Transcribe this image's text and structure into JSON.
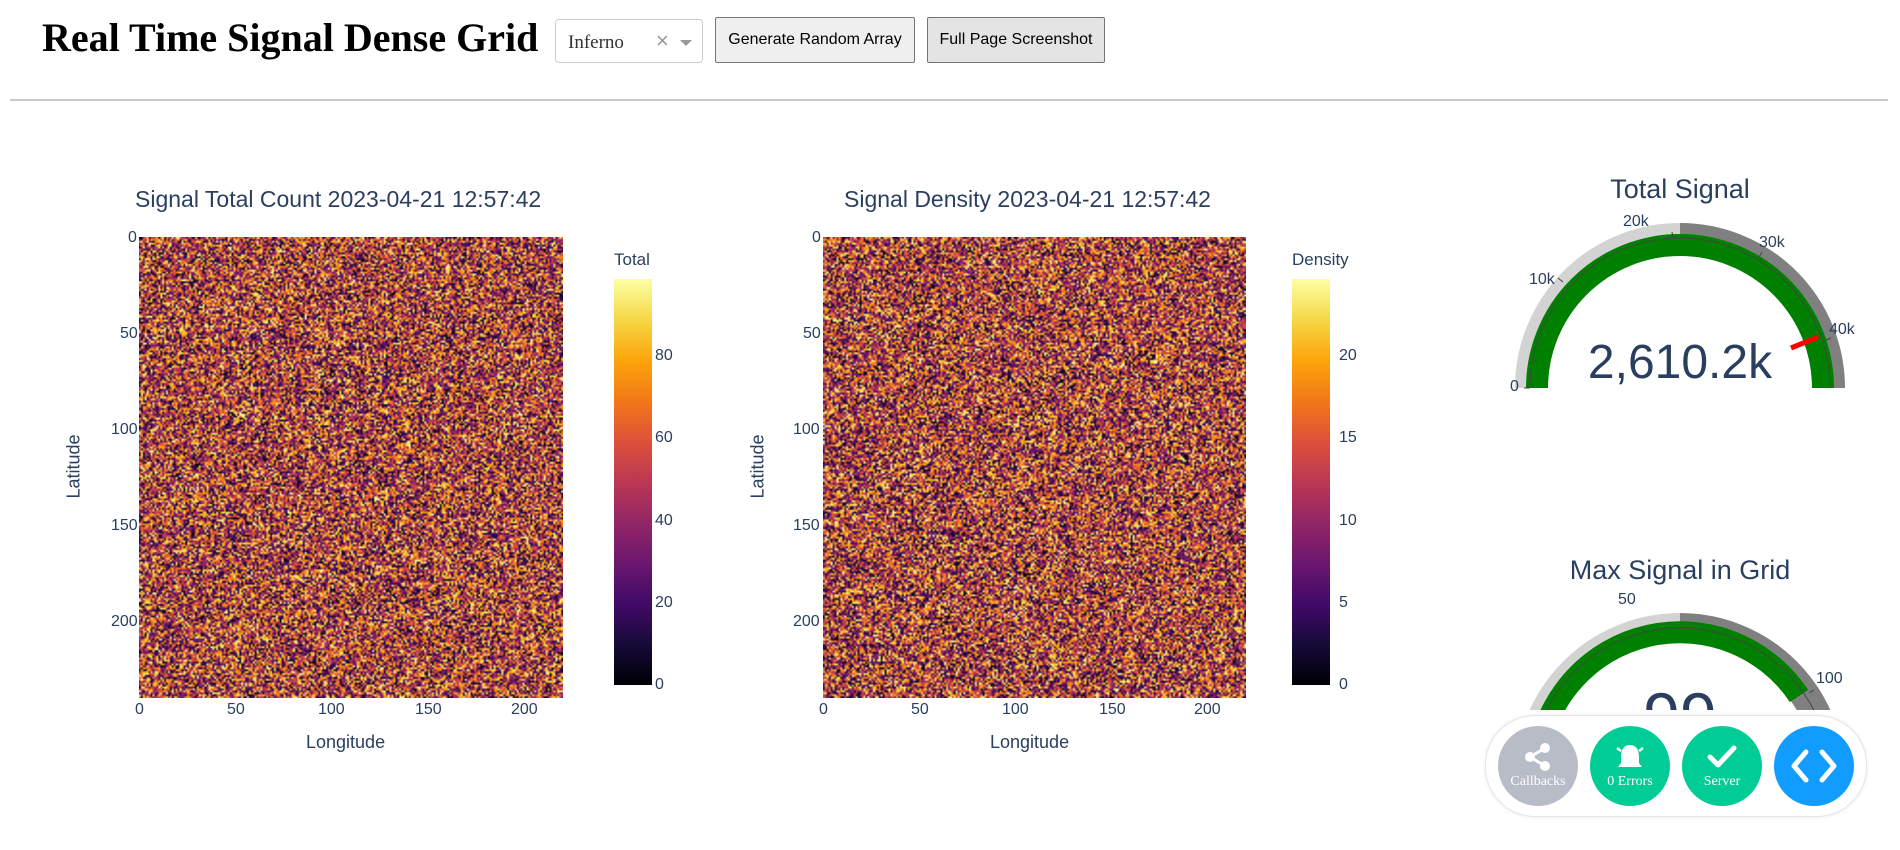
{
  "header": {
    "title": "Real Time Signal Dense Grid",
    "colorscale_dropdown": {
      "selected": "Inferno",
      "clear_symbol": "×"
    },
    "generate_button": "Generate Random Array",
    "screenshot_button": "Full Page Screenshot"
  },
  "colors": {
    "text": "#2a3f5f",
    "gauge_bar": "#008000",
    "gauge_threshold": "#ff0000",
    "gauge_step_light": "#d3d3d3",
    "gauge_step_dark": "#808080",
    "debug_grey": "#b7bcc7",
    "debug_green": "#00cc96",
    "debug_blue": "#119dff"
  },
  "chart_data": [
    {
      "type": "heatmap",
      "title": "Signal Total Count 2023-04-21 12:57:42",
      "xlabel": "Longitude",
      "ylabel": "Latitude",
      "x_ticks": [
        "0",
        "50",
        "100",
        "150",
        "200"
      ],
      "y_ticks": [
        "0",
        "50",
        "100",
        "150",
        "200"
      ],
      "x_range": [
        0,
        220
      ],
      "y_range": [
        0,
        240
      ],
      "grid_shape": [
        240,
        220
      ],
      "value_distribution": "uniform random",
      "colorscale": "Inferno",
      "colorbar": {
        "title": "Total",
        "range": [
          0,
          99
        ],
        "ticks": [
          "0",
          "20",
          "40",
          "60",
          "80"
        ],
        "tick_values": [
          0,
          20,
          40,
          60,
          80
        ]
      }
    },
    {
      "type": "heatmap",
      "title": "Signal Density 2023-04-21 12:57:42",
      "xlabel": "Longitude",
      "ylabel": "Latitude",
      "x_ticks": [
        "0",
        "50",
        "100",
        "150",
        "200"
      ],
      "y_ticks": [
        "0",
        "50",
        "100",
        "150",
        "200"
      ],
      "x_range": [
        0,
        220
      ],
      "y_range": [
        0,
        240
      ],
      "grid_shape": [
        240,
        220
      ],
      "value_distribution": "uniform random",
      "colorscale": "Inferno",
      "colorbar": {
        "title": "Density",
        "range": [
          0,
          24.75
        ],
        "ticks": [
          "0",
          "5",
          "10",
          "15",
          "20"
        ],
        "tick_values": [
          0,
          5,
          10,
          15,
          20
        ]
      }
    },
    {
      "type": "gauge",
      "title": "Total Signal",
      "value_label": "2,610.2k",
      "value": 2610200,
      "axis_range": [
        0,
        43560
      ],
      "ticks": [
        "0",
        "10k",
        "20k",
        "30k",
        "40k"
      ],
      "tick_values": [
        0,
        10000,
        20000,
        30000,
        40000
      ],
      "threshold": 40000,
      "steps": [
        {
          "range": [
            0,
            21780
          ],
          "color": "lightgray"
        },
        {
          "range": [
            21780,
            43560
          ],
          "color": "gray"
        }
      ]
    },
    {
      "type": "gauge",
      "title": "Max Signal in Grid",
      "value_label": "99",
      "value": 99,
      "axis_range": [
        0,
        130
      ],
      "ticks": [
        "50",
        "100"
      ],
      "tick_values": [
        50,
        100
      ],
      "bar_fill": 0.76,
      "steps": [
        {
          "range": [
            0,
            65
          ],
          "color": "lightgray"
        },
        {
          "range": [
            65,
            130
          ],
          "color": "gray"
        }
      ]
    }
  ],
  "debug_menu": {
    "callbacks": "Callbacks",
    "errors": "0 Errors",
    "server": "Server"
  }
}
